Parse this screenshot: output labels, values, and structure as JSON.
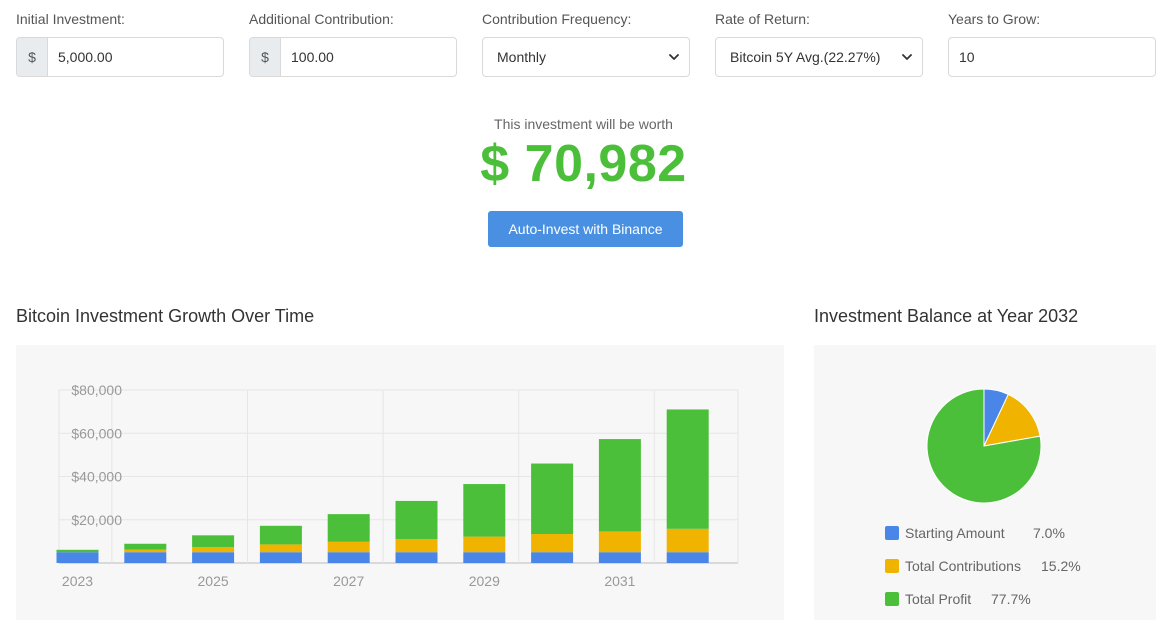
{
  "form": {
    "initial": {
      "label": "Initial Investment:",
      "prefix": "$",
      "value": "5,000.00"
    },
    "additional": {
      "label": "Additional Contribution:",
      "prefix": "$",
      "value": "100.00"
    },
    "frequency": {
      "label": "Contribution Frequency:",
      "value": "Monthly"
    },
    "rate": {
      "label": "Rate of Return:",
      "value": "Bitcoin 5Y Avg.(22.27%)"
    },
    "years": {
      "label": "Years to Grow:",
      "value": "10"
    }
  },
  "result": {
    "label": "This investment will be worth",
    "value": "$ 70,982"
  },
  "cta_label": "Auto-Invest with Binance",
  "bar_title": "Bitcoin Investment Growth Over Time",
  "pie_title": "Investment Balance at Year 2032",
  "colors": {
    "starting": "#4a86e8",
    "contributions": "#f0b400",
    "profit": "#4cbf3a",
    "accent": "#4a90e2"
  },
  "chart_data": [
    {
      "type": "bar",
      "stacked": true,
      "categories": [
        "2023",
        "2024",
        "2025",
        "2026",
        "2027",
        "2028",
        "2029",
        "2030",
        "2031",
        "2032"
      ],
      "x_tick_labels": [
        "2023",
        "2025",
        "2027",
        "2029",
        "2031"
      ],
      "y_tick_labels": [
        "$80,000",
        "$60,000",
        "$40,000",
        "$20,000"
      ],
      "ylim": [
        0,
        80000
      ],
      "grid": true,
      "series": [
        {
          "name": "Starting Amount",
          "color": "#4a86e8",
          "values": [
            5000,
            5000,
            5000,
            5000,
            5000,
            5000,
            5000,
            5000,
            5000,
            5000
          ]
        },
        {
          "name": "Total Contributions",
          "color": "#f0b400",
          "values": [
            0,
            1200,
            2400,
            3600,
            4800,
            6000,
            7200,
            8400,
            9600,
            10800
          ]
        },
        {
          "name": "Total Profit",
          "color": "#4cbf3a",
          "values": [
            1100,
            2700,
            5400,
            8600,
            12800,
            17700,
            24300,
            32600,
            42700,
            55200
          ]
        }
      ]
    },
    {
      "type": "pie",
      "title": "Investment Balance at Year 2032",
      "slices": [
        {
          "label": "Starting Amount",
          "value": 7.0,
          "display": "7.0%",
          "color": "#4a86e8"
        },
        {
          "label": "Total Contributions",
          "value": 15.2,
          "display": "15.2%",
          "color": "#f0b400"
        },
        {
          "label": "Total Profit",
          "value": 77.7,
          "display": "77.7%",
          "color": "#4cbf3a"
        }
      ],
      "legend_position": "bottom"
    }
  ]
}
